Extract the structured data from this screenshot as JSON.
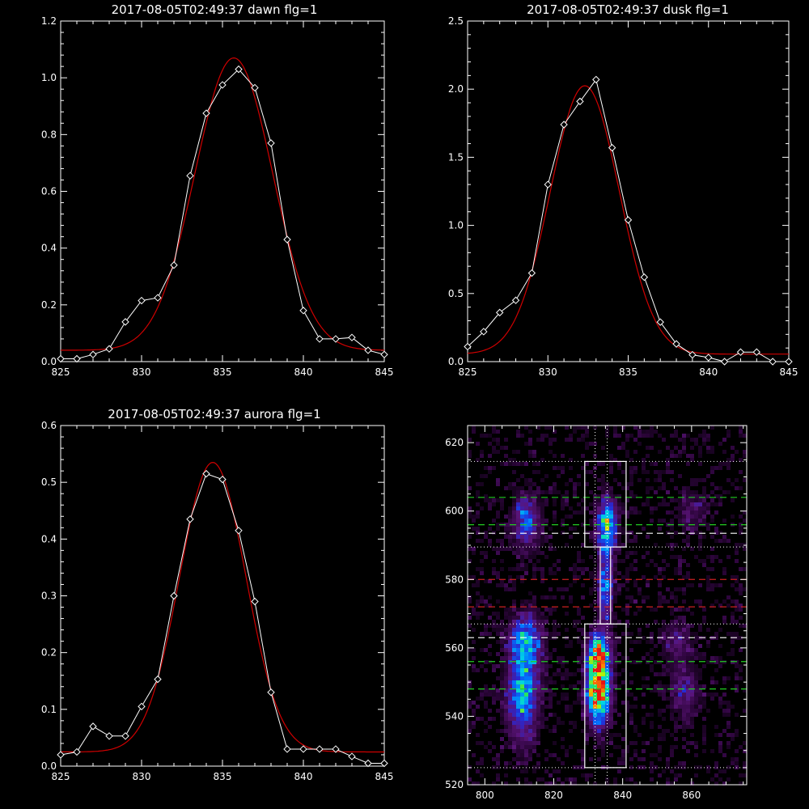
{
  "colors": {
    "background": "#000000",
    "axis": "#ffffff",
    "data": "#ffffff",
    "fit": "#d00000",
    "box": "#ffffff",
    "dash_green": "#22cc22",
    "dash_red": "#cc2020",
    "dash_white": "#ffffff"
  },
  "chart_data": [
    {
      "type": "line",
      "title": "2017-08-05T02:49:37 dawn flg=1",
      "xlim": [
        825,
        845
      ],
      "ylim": [
        0,
        1.2
      ],
      "xticks": [
        "825",
        "830",
        "835",
        "840",
        "845"
      ],
      "yticks": [
        "0.0",
        "0.2",
        "0.4",
        "0.6",
        "0.8",
        "1.0",
        "1.2"
      ],
      "series": [
        {
          "role": "data",
          "marker": "diamond",
          "x": [
            825,
            826,
            827,
            828,
            829,
            830,
            831,
            832,
            833,
            834,
            835,
            836,
            837,
            838,
            839,
            840,
            841,
            842,
            843,
            844,
            845
          ],
          "y": [
            0.01,
            0.01,
            0.025,
            0.045,
            0.14,
            0.215,
            0.225,
            0.34,
            0.655,
            0.875,
            0.975,
            1.03,
            0.965,
            0.77,
            0.43,
            0.18,
            0.08,
            0.08,
            0.085,
            0.04,
            0.025
          ]
        },
        {
          "role": "fit",
          "gauss": {
            "a": 1.03,
            "mu": 835.7,
            "sigma": 2.4,
            "base": 0.04
          }
        }
      ]
    },
    {
      "type": "line",
      "title": "2017-08-05T02:49:37 dusk flg=1",
      "xlim": [
        825,
        845
      ],
      "ylim": [
        0,
        2.5
      ],
      "xticks": [
        "825",
        "830",
        "835",
        "840",
        "845"
      ],
      "yticks": [
        "0.0",
        "0.5",
        "1.0",
        "1.5",
        "2.0",
        "2.5"
      ],
      "series": [
        {
          "role": "data",
          "marker": "diamond",
          "x": [
            825,
            826,
            827,
            828,
            829,
            830,
            831,
            832,
            833,
            834,
            835,
            836,
            837,
            838,
            839,
            840,
            841,
            842,
            843,
            844,
            845
          ],
          "y": [
            0.11,
            0.22,
            0.36,
            0.45,
            0.65,
            1.3,
            1.74,
            1.91,
            2.07,
            1.57,
            1.04,
            0.62,
            0.29,
            0.13,
            0.05,
            0.03,
            0.0,
            0.07,
            0.07,
            0.0,
            0.0
          ]
        },
        {
          "role": "fit",
          "gauss": {
            "a": 1.97,
            "mu": 832.3,
            "sigma": 2.15,
            "base": 0.055
          }
        }
      ]
    },
    {
      "type": "line",
      "title": "2017-08-05T02:49:37 aurora flg=1",
      "xlim": [
        825,
        845
      ],
      "ylim": [
        0,
        0.6
      ],
      "xticks": [
        "825",
        "830",
        "835",
        "840",
        "845"
      ],
      "yticks": [
        "0.0",
        "0.1",
        "0.2",
        "0.3",
        "0.4",
        "0.5",
        "0.6"
      ],
      "series": [
        {
          "role": "data",
          "marker": "diamond",
          "x": [
            825,
            826,
            827,
            828,
            829,
            830,
            831,
            832,
            833,
            834,
            835,
            836,
            837,
            838,
            839,
            840,
            841,
            842,
            843,
            844,
            845
          ],
          "y": [
            0.02,
            0.025,
            0.07,
            0.053,
            0.053,
            0.105,
            0.153,
            0.3,
            0.435,
            0.515,
            0.505,
            0.415,
            0.29,
            0.13,
            0.03,
            0.03,
            0.03,
            0.03,
            0.017,
            0.005,
            0.005
          ]
        },
        {
          "role": "fit",
          "gauss": {
            "a": 0.51,
            "mu": 834.4,
            "sigma": 2.05,
            "base": 0.025
          }
        }
      ]
    },
    {
      "type": "heatmap",
      "title": "",
      "xlim": [
        795,
        876
      ],
      "ylim": [
        520,
        625
      ],
      "xticks": [
        "800",
        "820",
        "840",
        "860"
      ],
      "yticks": [
        "520",
        "540",
        "560",
        "580",
        "600",
        "620"
      ],
      "blobs": [
        {
          "x": 811,
          "y": 547,
          "sx": 3.0,
          "sy": 9,
          "amp": 0.55
        },
        {
          "x": 812,
          "y": 562,
          "sx": 3.0,
          "sy": 5,
          "amp": 0.45
        },
        {
          "x": 812,
          "y": 597,
          "sx": 2.5,
          "sy": 5,
          "amp": 0.4
        },
        {
          "x": 833,
          "y": 547,
          "sx": 2.2,
          "sy": 6,
          "amp": 1.0
        },
        {
          "x": 833,
          "y": 558,
          "sx": 2.2,
          "sy": 4,
          "amp": 0.75
        },
        {
          "x": 835,
          "y": 578,
          "sx": 1.5,
          "sy": 8,
          "amp": 0.42
        },
        {
          "x": 835.5,
          "y": 596,
          "sx": 2.0,
          "sy": 5,
          "amp": 0.6
        },
        {
          "x": 858,
          "y": 548,
          "sx": 3.0,
          "sy": 5,
          "amp": 0.22
        },
        {
          "x": 856,
          "y": 562,
          "sx": 3.0,
          "sy": 4,
          "amp": 0.18
        },
        {
          "x": 860,
          "y": 600,
          "sx": 3.0,
          "sy": 4,
          "amp": 0.15
        }
      ],
      "vlines_dotted": [
        832,
        835.5
      ],
      "hlines_dotted": [
        525,
        567,
        589.5,
        614.5
      ],
      "hlines_green": [
        548,
        556,
        596,
        604
      ],
      "hlines_red": [
        572,
        580
      ],
      "hlines_white_dashed": [
        563,
        593.5
      ],
      "boxes": [
        {
          "x0": 829,
          "x1": 841,
          "y0": 525,
          "y1": 567
        },
        {
          "x0": 829,
          "x1": 841,
          "y0": 589.5,
          "y1": 614.5
        },
        {
          "x0": 833.5,
          "x1": 836.5,
          "y0": 567,
          "y1": 589.5
        }
      ]
    }
  ]
}
